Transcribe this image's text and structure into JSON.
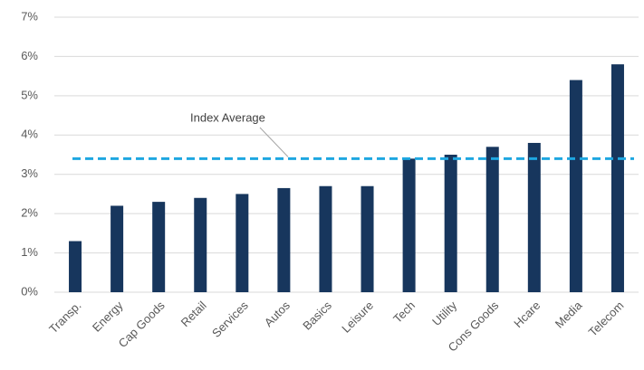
{
  "chart_data": {
    "type": "bar",
    "categories": [
      "Transp.",
      "Energy",
      "Cap Goods",
      "Retail",
      "Services",
      "Autos",
      "Basics",
      "Leisure",
      "Tech",
      "Utility",
      "Cons Goods",
      "Hcare",
      "Media",
      "Telecom"
    ],
    "values": [
      1.3,
      2.2,
      2.3,
      2.4,
      2.5,
      2.65,
      2.7,
      2.7,
      3.4,
      3.5,
      3.7,
      3.8,
      5.4,
      5.8
    ],
    "color": "#17365d",
    "ylim": [
      0,
      7
    ],
    "yticks": [
      {
        "value": 0,
        "label": "0%"
      },
      {
        "value": 1,
        "label": "1%"
      },
      {
        "value": 2,
        "label": "2%"
      },
      {
        "value": 3,
        "label": "3%"
      },
      {
        "value": 4,
        "label": "4%"
      },
      {
        "value": 5,
        "label": "5%"
      },
      {
        "value": 6,
        "label": "6%"
      },
      {
        "value": 7,
        "label": "7%"
      }
    ],
    "grid": true,
    "reference_line": {
      "label": "Index Average",
      "value": 3.4,
      "color": "#1ea7e1"
    }
  }
}
